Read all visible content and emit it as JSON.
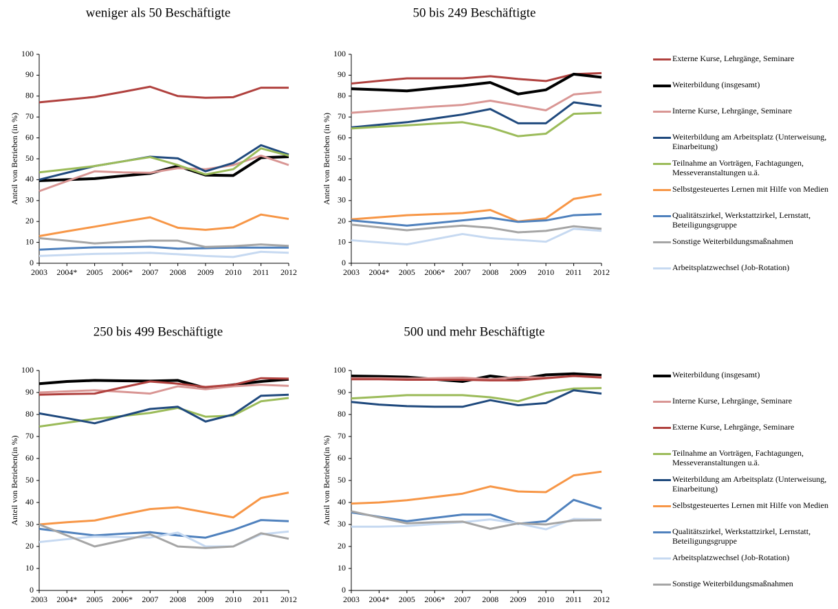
{
  "chart_data": [
    {
      "type": "line",
      "title": "weniger als 50 Beschäftigte",
      "y_label": "Anteil von Betrieben (in %)",
      "categories": [
        "2003",
        "2004*",
        "2005",
        "2006*",
        "2007",
        "2008",
        "2009",
        "2010",
        "2011",
        "2012"
      ],
      "ylim": [
        0,
        100
      ],
      "yticks": [
        0,
        10,
        20,
        30,
        40,
        50,
        60,
        70,
        80,
        90,
        100
      ],
      "grid": false,
      "series": [
        {
          "color": "#b0413e",
          "values": [
            77,
            78.3,
            79.6,
            82,
            84.5,
            80,
            79.2,
            79.5,
            84,
            84
          ]
        },
        {
          "color": "#000000",
          "bold": true,
          "values": [
            39.5,
            40,
            40.5,
            41.8,
            43,
            46.5,
            42.2,
            42,
            50.5,
            51
          ]
        },
        {
          "color": "#d99694",
          "values": [
            34.5,
            39.3,
            44,
            43.5,
            43.3,
            45.5,
            45,
            47,
            51.5,
            47
          ]
        },
        {
          "color": "#1f497d",
          "values": [
            40,
            43.3,
            46.5,
            48.7,
            51,
            50.2,
            44,
            48,
            56.5,
            52
          ]
        },
        {
          "color": "#9bbb59",
          "values": [
            43.5,
            45,
            46.5,
            48.7,
            50.8,
            47,
            42.5,
            45,
            55,
            51.5
          ]
        },
        {
          "color": "#f79646",
          "values": [
            13,
            15.3,
            17.5,
            19.8,
            22,
            17,
            16,
            17.2,
            23.3,
            21.2
          ]
        },
        {
          "color": "#4f81bd",
          "values": [
            6.5,
            7.1,
            7.6,
            7.7,
            7.9,
            7,
            7.2,
            7.5,
            7.5,
            7.5
          ]
        },
        {
          "color": "#a5a5a5",
          "values": [
            12,
            10.8,
            9.5,
            10.2,
            10.8,
            10.8,
            7.8,
            8.2,
            9,
            8.3
          ]
        },
        {
          "color": "#c6d9f1",
          "values": [
            3.5,
            4,
            4.5,
            4.7,
            5,
            4.3,
            3.5,
            3,
            5.5,
            5
          ]
        }
      ]
    },
    {
      "type": "line",
      "title": "50 bis 249 Beschäftigte",
      "y_label": "Anteil von Betrieben (in %)",
      "categories": [
        "2003",
        "2004*",
        "2005",
        "2006*",
        "2007",
        "2008",
        "2009",
        "2010",
        "2011",
        "2012"
      ],
      "ylim": [
        0,
        100
      ],
      "yticks": [
        0,
        10,
        20,
        30,
        40,
        50,
        60,
        70,
        80,
        90,
        100
      ],
      "grid": false,
      "legend": "right",
      "series": [
        {
          "name": "Externe Kurse, Lehrgänge, Seminare",
          "color": "#b0413e",
          "values": [
            86,
            87.3,
            88.5,
            88.5,
            88.5,
            89.5,
            88.2,
            87.2,
            90.5,
            91
          ]
        },
        {
          "name": "Weiterbildung (insgesamt)",
          "color": "#000000",
          "bold": true,
          "values": [
            83.5,
            83,
            82.5,
            83.8,
            85,
            86.5,
            81,
            83,
            90.5,
            89
          ]
        },
        {
          "name": "Interne Kurse, Lehrgänge, Seminare",
          "color": "#d99694",
          "values": [
            72,
            73,
            74,
            75,
            75.8,
            77.8,
            75.5,
            73.2,
            80.8,
            82
          ]
        },
        {
          "name": "Weiterbildung am Arbeitsplatz (Unterweisung, Einarbeitung)",
          "color": "#1f497d",
          "values": [
            65,
            66.3,
            67.5,
            69.3,
            71.2,
            73.8,
            67,
            67,
            77,
            75.2
          ]
        },
        {
          "name": "Teilnahme an Vorträgen, Fachtagungen, Messeveranstaltungen u.ä.",
          "color": "#9bbb59",
          "values": [
            64.5,
            65.3,
            66,
            66.8,
            67.5,
            65,
            60.8,
            62,
            71.5,
            72
          ]
        },
        {
          "name": "Selbstgesteuertes Lernen mit Hilfe von Medien",
          "color": "#f79646",
          "values": [
            21,
            22,
            23,
            23.5,
            24,
            25.5,
            20,
            21.5,
            30.8,
            33
          ]
        },
        {
          "name": "Qualitätszirkel, Werkstattzirkel, Lernstatt, Beteiligungsgruppe",
          "color": "#4f81bd",
          "values": [
            20.5,
            19.3,
            18,
            19.2,
            20.5,
            21.8,
            19.8,
            20.5,
            23,
            23.5
          ]
        },
        {
          "name": "Sonstige Weiterbildungsmaßnahmen",
          "color": "#a5a5a5",
          "values": [
            18.5,
            17.2,
            15.8,
            17,
            18,
            17,
            14.8,
            15.5,
            17.7,
            16.5
          ]
        },
        {
          "name": "Arbeitsplatzwechsel (Job-Rotation)",
          "color": "#c6d9f1",
          "values": [
            11,
            10,
            9,
            11.5,
            14,
            12,
            11.2,
            10.3,
            16.5,
            15.5
          ]
        }
      ]
    },
    {
      "type": "line",
      "title": "250 bis 499 Beschäftigte",
      "y_label": "Anteil von Betrieben(in %)",
      "categories": [
        "2003",
        "2004*",
        "2005",
        "2006*",
        "2007",
        "2008",
        "2009",
        "2010",
        "2011",
        "2012"
      ],
      "ylim": [
        0,
        100
      ],
      "yticks": [
        0,
        10,
        20,
        30,
        40,
        50,
        60,
        70,
        80,
        90,
        100
      ],
      "grid": false,
      "series": [
        {
          "color": "#000000",
          "bold": true,
          "values": [
            94,
            95,
            95.5,
            95.3,
            95.2,
            95.5,
            92,
            93.5,
            95,
            96
          ]
        },
        {
          "color": "#d99694",
          "values": [
            90,
            90.5,
            91,
            90.3,
            89.5,
            92.8,
            91.5,
            92.8,
            93.5,
            93
          ]
        },
        {
          "color": "#b0413e",
          "values": [
            89,
            89.3,
            89.5,
            92.3,
            95,
            94,
            92.5,
            93.5,
            96.5,
            96.3
          ]
        },
        {
          "color": "#9bbb59",
          "values": [
            74.5,
            76.3,
            78,
            79.3,
            80.7,
            83,
            79,
            79.5,
            86,
            87.5
          ]
        },
        {
          "color": "#1f497d",
          "values": [
            80.5,
            78.3,
            76,
            79.3,
            82.5,
            83.5,
            76.8,
            80,
            88.5,
            89
          ]
        },
        {
          "color": "#f79646",
          "values": [
            30,
            31,
            31.8,
            34.5,
            37,
            37.8,
            35.5,
            33.2,
            42,
            44.5
          ]
        },
        {
          "color": "#4f81bd",
          "values": [
            28,
            26.5,
            25,
            25.8,
            26.5,
            25,
            24,
            27.5,
            32,
            31.5
          ]
        },
        {
          "color": "#c6d9f1",
          "values": [
            22,
            23.3,
            24.5,
            24.3,
            24,
            26.3,
            20,
            20,
            25.5,
            26.8
          ]
        },
        {
          "color": "#a5a5a5",
          "values": [
            30,
            25,
            20,
            22.7,
            25.5,
            20,
            19.3,
            20,
            26,
            23.5
          ]
        }
      ]
    },
    {
      "type": "line",
      "title": "500 und mehr Beschäftigte",
      "y_label": "Anteil von Betrieben(in %)",
      "categories": [
        "2003",
        "2004*",
        "2005",
        "2006*",
        "2007",
        "2008",
        "2009",
        "2010",
        "2011",
        "2012"
      ],
      "ylim": [
        0,
        100
      ],
      "yticks": [
        0,
        10,
        20,
        30,
        40,
        50,
        60,
        70,
        80,
        90,
        100
      ],
      "grid": false,
      "legend": "right",
      "series": [
        {
          "name": "Weiterbildung (insgesamt)",
          "color": "#000000",
          "bold": true,
          "values": [
            97.5,
            97.3,
            97,
            96,
            95,
            97.5,
            96,
            98,
            98.5,
            97.8
          ]
        },
        {
          "name": "Interne Kurse, Lehrgänge, Seminare",
          "color": "#d99694",
          "values": [
            96.5,
            96.5,
            96.3,
            96.5,
            96.7,
            96,
            97,
            96.7,
            97.5,
            97
          ]
        },
        {
          "name": "Externe Kurse, Lehrgänge, Seminare",
          "color": "#b0413e",
          "values": [
            96,
            96,
            95.8,
            95.8,
            95.8,
            95.5,
            95.5,
            96.5,
            97.5,
            96.8
          ]
        },
        {
          "name": "Teilnahme an Vorträgen, Fachtagungen, Messeveranstaltungen u.ä.",
          "color": "#9bbb59",
          "values": [
            87.3,
            88,
            88.8,
            88.8,
            88.8,
            87.8,
            86,
            89.8,
            91.8,
            92
          ]
        },
        {
          "name": "Weiterbildung am Arbeitsplatz (Unterweisung, Einarbeitung)",
          "color": "#1f497d",
          "values": [
            85.7,
            84.5,
            83.8,
            83.5,
            83.5,
            86.5,
            84.2,
            85.2,
            91,
            89.5
          ]
        },
        {
          "name": "Selbstgesteuertes Lernen mit Hilfe von Medien",
          "color": "#f79646",
          "values": [
            39.5,
            40,
            41,
            42.5,
            44,
            47.3,
            45,
            44.7,
            52.3,
            54
          ]
        },
        {
          "name": "Qualitätszirkel, Werkstattzirkel, Lernstatt, Beteiligungsgruppe",
          "color": "#4f81bd",
          "values": [
            35.5,
            33.5,
            31.5,
            33,
            34.5,
            34.5,
            30.3,
            31.5,
            41.2,
            37.2
          ]
        },
        {
          "name": "Arbeitsplatzwechsel (Job-Rotation)",
          "color": "#c6d9f1",
          "values": [
            29,
            29,
            29.3,
            30.2,
            31,
            32.3,
            30.5,
            27.8,
            32.5,
            32.3
          ]
        },
        {
          "name": "Sonstige Weiterbildungsmaßnahmen",
          "color": "#a5a5a5",
          "values": [
            36,
            33.2,
            30.5,
            31,
            31.3,
            28,
            30.5,
            30,
            31.8,
            32
          ]
        }
      ]
    }
  ]
}
